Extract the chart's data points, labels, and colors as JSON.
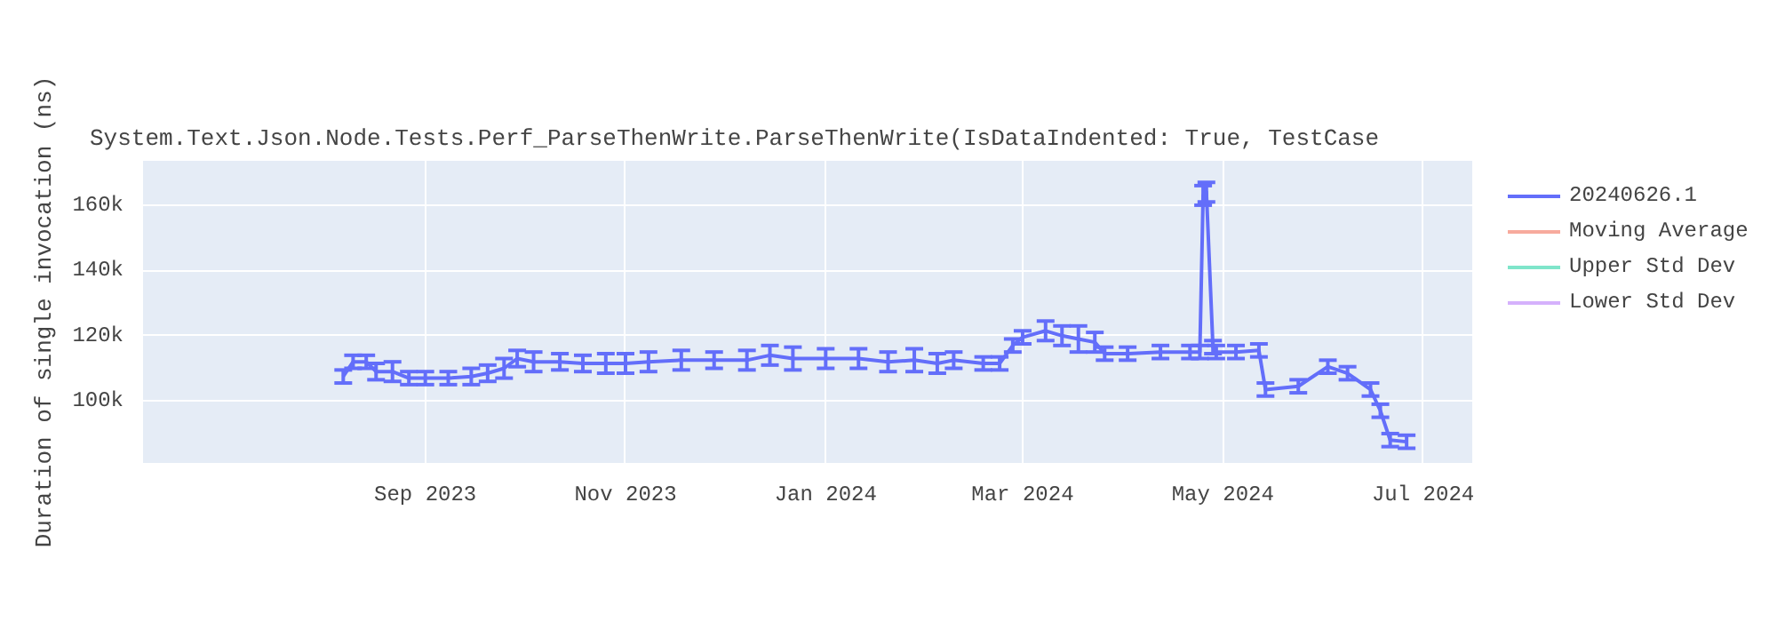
{
  "chart_data": {
    "type": "line",
    "title": "System.Text.Json.Node.Tests.Perf_ParseThenWrite.ParseThenWrite(IsDataIndented: True, TestCase",
    "ylabel": "Duration of single invocation (ns)",
    "x": [
      "2023-08-07",
      "2023-08-10",
      "2023-08-14",
      "2023-08-17",
      "2023-08-22",
      "2023-08-27",
      "2023-09-01",
      "2023-09-08",
      "2023-09-15",
      "2023-09-20",
      "2023-09-25",
      "2023-09-29",
      "2023-10-04",
      "2023-10-12",
      "2023-10-19",
      "2023-10-26",
      "2023-11-01",
      "2023-11-08",
      "2023-11-18",
      "2023-11-28",
      "2023-12-08",
      "2023-12-15",
      "2023-12-22",
      "2024-01-01",
      "2024-01-11",
      "2024-01-20",
      "2024-01-28",
      "2024-02-04",
      "2024-02-09",
      "2024-02-18",
      "2024-02-23",
      "2024-02-27",
      "2024-03-01",
      "2024-03-08",
      "2024-03-13",
      "2024-03-18",
      "2024-03-23",
      "2024-03-26",
      "2024-04-02",
      "2024-04-12",
      "2024-04-21",
      "2024-04-24",
      "2024-04-25",
      "2024-04-26",
      "2024-04-28",
      "2024-04-29",
      "2024-05-05",
      "2024-05-12",
      "2024-05-14",
      "2024-05-24",
      "2024-06-02",
      "2024-06-08",
      "2024-06-15",
      "2024-06-18",
      "2024-06-21",
      "2024-06-26"
    ],
    "series": [
      {
        "name": "20240626.1",
        "color": "#636efa",
        "values": [
          107500,
          112000,
          112000,
          109000,
          109000,
          107000,
          107000,
          107000,
          107500,
          108500,
          110000,
          113000,
          112000,
          112000,
          111500,
          111500,
          111500,
          112000,
          112500,
          112500,
          112500,
          114000,
          113000,
          113000,
          113000,
          112000,
          112500,
          111500,
          112500,
          111500,
          111500,
          117000,
          119500,
          121500,
          120000,
          119000,
          118000,
          114500,
          114500,
          115000,
          115000,
          115000,
          163000,
          164000,
          116500,
          115000,
          115000,
          115500,
          103500,
          104500,
          110500,
          108500,
          103500,
          97000,
          88000,
          87500
        ],
        "errors": [
          2000,
          2000,
          2000,
          2500,
          3000,
          2000,
          2000,
          2000,
          2500,
          2500,
          3000,
          2500,
          3000,
          2500,
          2500,
          3000,
          3000,
          3000,
          3000,
          2500,
          3000,
          3000,
          3500,
          3000,
          3000,
          3000,
          3500,
          3000,
          2500,
          2000,
          2000,
          2000,
          2000,
          3000,
          3000,
          4000,
          3000,
          2000,
          2000,
          2000,
          2000,
          2000,
          3000,
          3000,
          2000,
          2000,
          2000,
          2000,
          2000,
          2000,
          2000,
          2000,
          2000,
          2000,
          2000,
          2000
        ]
      },
      {
        "name": "Moving Average",
        "color": "#ef553b",
        "values": [
          null,
          null,
          null,
          null,
          null,
          null,
          null,
          null,
          null,
          null,
          null,
          null,
          null,
          null,
          null,
          null,
          null,
          null,
          null,
          null,
          null,
          null,
          null,
          null,
          null,
          null,
          null,
          null,
          null,
          null,
          null,
          null,
          null,
          null,
          null,
          null,
          null,
          null,
          null,
          null,
          null,
          null,
          null,
          null,
          null,
          null,
          null,
          null,
          null,
          null,
          null,
          null,
          null,
          null,
          null,
          null
        ]
      },
      {
        "name": "Upper Std Dev",
        "color": "#00cc96",
        "values": [
          null,
          null,
          null,
          null,
          null,
          null,
          null,
          null,
          null,
          null,
          null,
          null,
          null,
          null,
          null,
          null,
          null,
          null,
          null,
          null,
          null,
          null,
          null,
          null,
          null,
          null,
          null,
          null,
          null,
          null,
          null,
          null,
          null,
          null,
          null,
          null,
          null,
          null,
          null,
          null,
          null,
          null,
          null,
          null,
          null,
          null,
          null,
          null,
          null,
          null,
          null,
          null,
          null,
          null,
          null,
          null
        ]
      },
      {
        "name": "Lower Std Dev",
        "color": "#ab63fa",
        "values": [
          null,
          null,
          null,
          null,
          null,
          null,
          null,
          null,
          null,
          null,
          null,
          null,
          null,
          null,
          null,
          null,
          null,
          null,
          null,
          null,
          null,
          null,
          null,
          null,
          null,
          null,
          null,
          null,
          null,
          null,
          null,
          null,
          null,
          null,
          null,
          null,
          null,
          null,
          null,
          null,
          null,
          null,
          null,
          null,
          null,
          null,
          null,
          null,
          null,
          null,
          null,
          null,
          null,
          null,
          null,
          null
        ]
      }
    ],
    "xlim": [
      "2023-06-07",
      "2024-07-16"
    ],
    "xticks": [
      {
        "value": "2023-09-01",
        "label": "Sep 2023"
      },
      {
        "value": "2023-11-01",
        "label": "Nov 2023"
      },
      {
        "value": "2024-01-01",
        "label": "Jan 2024"
      },
      {
        "value": "2024-03-01",
        "label": "Mar 2024"
      },
      {
        "value": "2024-05-01",
        "label": "May 2024"
      },
      {
        "value": "2024-07-01",
        "label": "Jul 2024"
      }
    ],
    "ylim": [
      81000,
      173600
    ],
    "yticks": [
      {
        "value": 100000,
        "label": "100k"
      },
      {
        "value": 120000,
        "label": "120k"
      },
      {
        "value": 140000,
        "label": "140k"
      },
      {
        "value": 160000,
        "label": "160k"
      }
    ],
    "grid": true,
    "legend": "right",
    "marker": "none",
    "line_style": "solid"
  }
}
